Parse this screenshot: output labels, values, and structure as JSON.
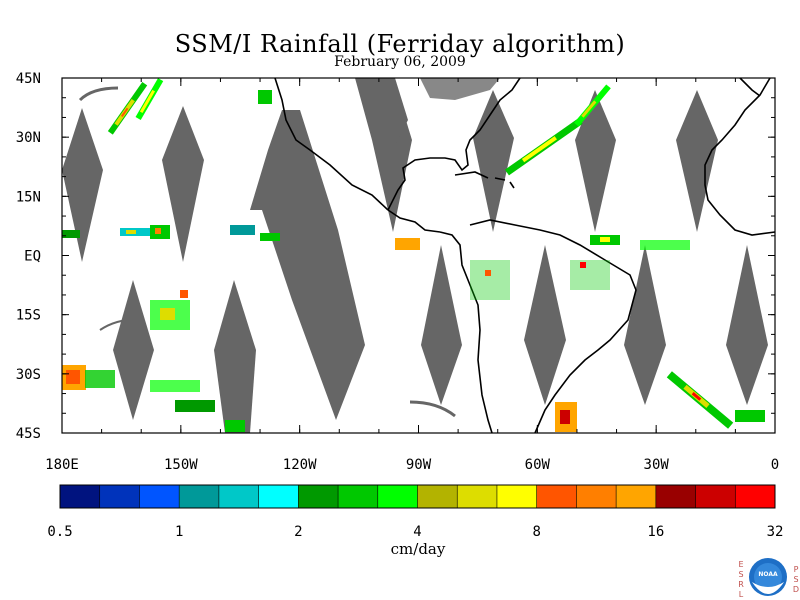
{
  "title": "SSM/I Rainfall (Ferriday algorithm)",
  "subtitle": "February 06, 2009",
  "map": {
    "lat_labels": [
      "45N",
      "30N",
      "15N",
      "EQ",
      "15S",
      "30S",
      "45S"
    ],
    "lon_labels": [
      "180E",
      "150W",
      "120W",
      "90W",
      "60W",
      "30W",
      "0"
    ],
    "no_data_color": "#666666",
    "coast_color": "#000000"
  },
  "colorbar": {
    "colors": [
      "#00137f",
      "#0033bb",
      "#0055ff",
      "#009999",
      "#00c8c8",
      "#00ffff",
      "#009900",
      "#00c800",
      "#00ff00",
      "#b3b300",
      "#dddd00",
      "#ffff00",
      "#ff5500",
      "#ff7f00",
      "#ffa500",
      "#990000",
      "#cc0000",
      "#ff0000"
    ],
    "tick_labels": [
      "0.5",
      "1",
      "2",
      "4",
      "8",
      "16",
      "32"
    ],
    "units": "cm/day"
  },
  "logo": {
    "left_letters": [
      "E",
      "S",
      "R",
      "L"
    ],
    "right_letters": [
      "P",
      "S",
      "D"
    ],
    "text": "NOAA"
  }
}
